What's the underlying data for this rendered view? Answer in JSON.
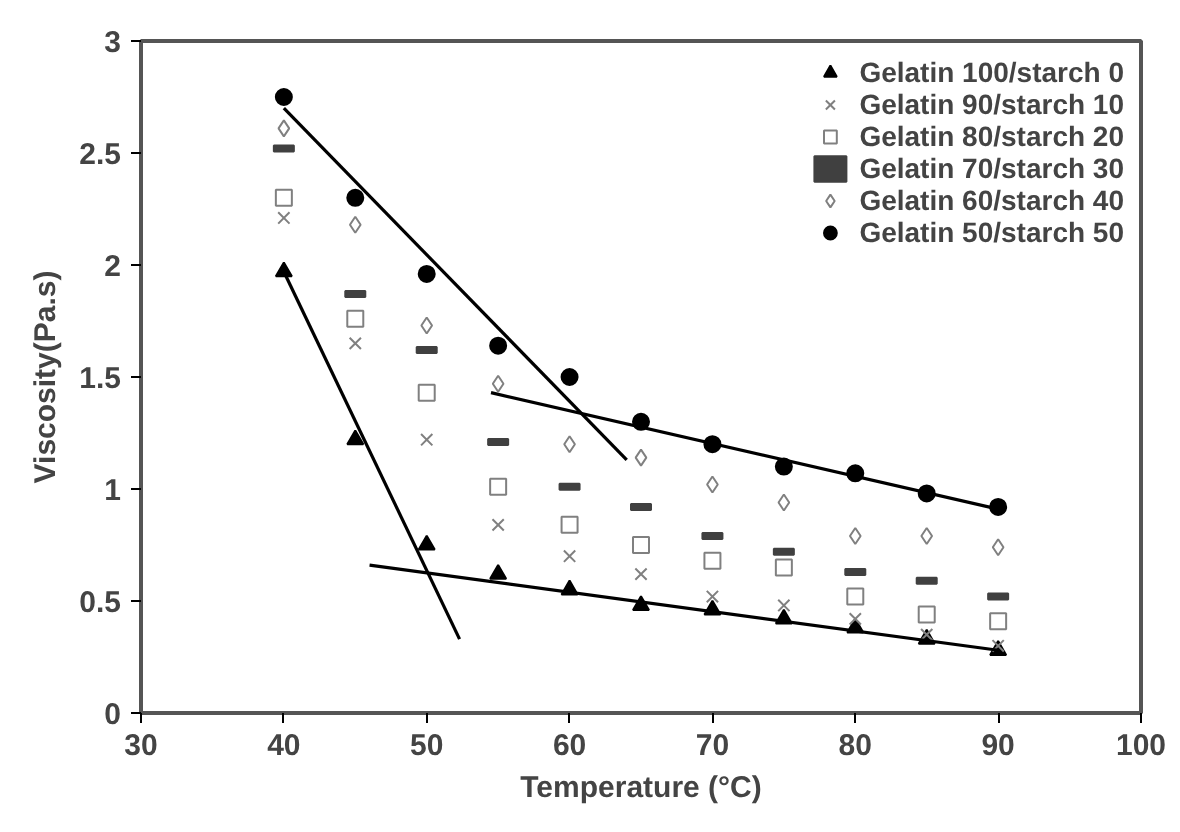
{
  "chart_data": {
    "type": "scatter",
    "xlabel": "Temperature (°C)",
    "ylabel": "Viscosity(Pa.s)",
    "x": [
      40,
      45,
      50,
      55,
      60,
      65,
      70,
      75,
      80,
      85,
      90
    ],
    "xlim": [
      30,
      100
    ],
    "xticks": [
      30,
      40,
      50,
      60,
      70,
      80,
      90,
      100
    ],
    "ylim": [
      0,
      3
    ],
    "yticks": [
      0,
      0.5,
      1,
      1.5,
      2,
      2.5,
      3
    ],
    "grid": false,
    "legend": "top right",
    "series": [
      {
        "name": "Gelatin 100/starch 0",
        "color": "#000000",
        "marker": "triangle",
        "values": [
          1.97,
          1.22,
          0.75,
          0.62,
          0.55,
          0.48,
          0.46,
          0.42,
          0.38,
          0.33,
          0.28
        ]
      },
      {
        "name": "Gelatin 90/starch 10",
        "color": "#808080",
        "marker": "cross",
        "values": [
          2.21,
          1.65,
          1.22,
          0.84,
          0.7,
          0.62,
          0.52,
          0.48,
          0.42,
          0.35,
          0.3
        ]
      },
      {
        "name": "Gelatin 80/starch 20",
        "color": "#808080",
        "marker": "square",
        "values": [
          2.3,
          1.76,
          1.43,
          1.01,
          0.84,
          0.75,
          0.68,
          0.65,
          0.52,
          0.44,
          0.41
        ]
      },
      {
        "name": "Gelatin 70/starch 30",
        "color": "#404040",
        "values": [
          2.52,
          1.87,
          1.62,
          1.21,
          1.01,
          0.92,
          0.79,
          0.72,
          0.63,
          0.59,
          0.52
        ]
      },
      {
        "name": "Gelatin 60/starch 40",
        "color": "#808080",
        "marker": "diamond",
        "values": [
          2.61,
          2.18,
          1.73,
          1.47,
          1.2,
          1.14,
          1.02,
          0.94,
          0.79,
          0.79,
          0.74
        ]
      },
      {
        "name": "Gelatin 50/starch 50",
        "color": "#000000",
        "marker": "circle",
        "values": [
          2.75,
          2.3,
          1.96,
          1.64,
          1.5,
          1.3,
          1.2,
          1.1,
          1.07,
          0.98,
          0.92
        ]
      },
      {
        "type": "line",
        "color": "#000000",
        "x": [
          40,
          52.3
        ],
        "values": [
          1.97,
          0.33
        ]
      },
      {
        "type": "line",
        "color": "#000000",
        "x": [
          46,
          90
        ],
        "values": [
          0.66,
          0.28
        ]
      },
      {
        "type": "line",
        "color": "#000000",
        "x": [
          40,
          64
        ],
        "values": [
          2.7,
          1.13
        ]
      },
      {
        "type": "line",
        "color": "#000000",
        "x": [
          54.5,
          90
        ],
        "values": [
          1.43,
          0.91
        ]
      }
    ]
  }
}
